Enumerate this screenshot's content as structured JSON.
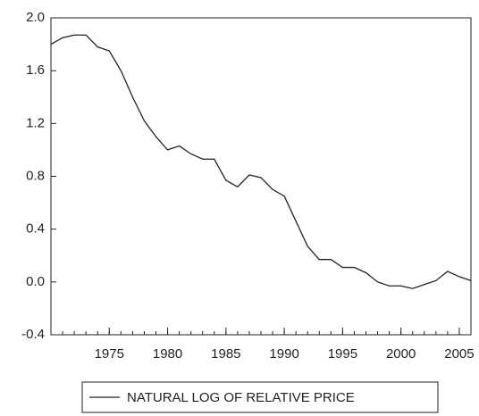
{
  "chart_data": {
    "type": "line",
    "x": [
      1970,
      1971,
      1972,
      1973,
      1974,
      1975,
      1976,
      1977,
      1978,
      1979,
      1980,
      1981,
      1982,
      1983,
      1984,
      1985,
      1986,
      1987,
      1988,
      1989,
      1990,
      1991,
      1992,
      1993,
      1994,
      1995,
      1996,
      1997,
      1998,
      1999,
      2000,
      2001,
      2002,
      2003,
      2004,
      2005,
      2006
    ],
    "series": [
      {
        "name": "NATURAL LOG OF RELATIVE PRICE",
        "color": "#222222",
        "values": [
          1.8,
          1.85,
          1.87,
          1.87,
          1.78,
          1.75,
          1.6,
          1.4,
          1.22,
          1.1,
          1.0,
          1.03,
          0.97,
          0.93,
          0.93,
          0.77,
          0.72,
          0.81,
          0.79,
          0.7,
          0.65,
          0.46,
          0.27,
          0.17,
          0.17,
          0.11,
          0.11,
          0.07,
          0.0,
          -0.03,
          -0.03,
          -0.05,
          -0.02,
          0.01,
          0.08,
          0.04,
          0.01
        ]
      }
    ],
    "xlim": [
      1970,
      2006
    ],
    "xticks": [
      1975,
      1980,
      1985,
      1990,
      1995,
      2000,
      2005
    ],
    "ylim": [
      -0.4,
      2.0
    ],
    "yticks": [
      {
        "value": -0.4,
        "label": "-0.4"
      },
      {
        "value": 0,
        "label": "0.0"
      },
      {
        "value": 0.4,
        "label": "0.4"
      },
      {
        "value": 0.8,
        "label": "0.8"
      },
      {
        "value": 1.2,
        "label": "1.2"
      },
      {
        "value": 1.6,
        "label": "1.6"
      },
      {
        "value": 2.0,
        "label": "2.0"
      }
    ],
    "grid": false,
    "legend": "bottom"
  }
}
